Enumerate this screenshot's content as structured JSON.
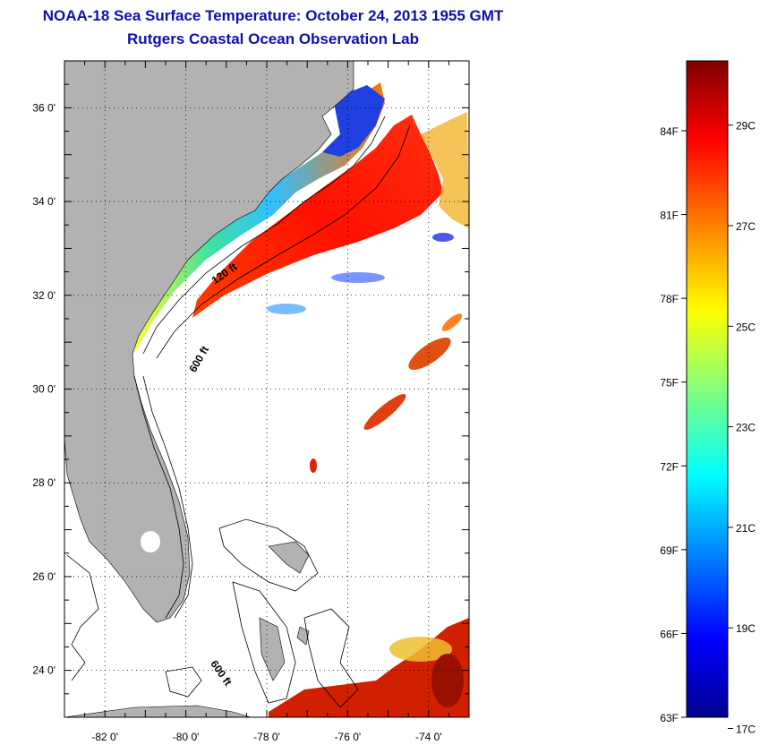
{
  "title": {
    "line1": "NOAA-18 Sea Surface Temperature:  October 24, 2013 1955 GMT",
    "line2": "Rutgers Coastal Ocean Observation Lab"
  },
  "map": {
    "lon_range": [
      -83,
      -73
    ],
    "lat_range": [
      23,
      37
    ],
    "lon_ticks": [
      {
        "value": -82,
        "label": "-82 0'"
      },
      {
        "value": -80,
        "label": "-80 0'"
      },
      {
        "value": -78,
        "label": "-78 0'"
      },
      {
        "value": -76,
        "label": "-76 0'"
      },
      {
        "value": -74,
        "label": "-74 0'"
      }
    ],
    "lat_ticks": [
      {
        "value": 36,
        "label": "36 0'"
      },
      {
        "value": 34,
        "label": "34 0'"
      },
      {
        "value": 32,
        "label": "32 0'"
      },
      {
        "value": 30,
        "label": "30 0'"
      },
      {
        "value": 28,
        "label": "28 0'"
      },
      {
        "value": 26,
        "label": "26 0'"
      },
      {
        "value": 24,
        "label": "24 0'"
      }
    ],
    "grid": true,
    "land_color": "#b2b2b2",
    "contour_labels": [
      {
        "text": "120 ft",
        "lon": -79.0,
        "lat": 32.4
      },
      {
        "text": "600 ft",
        "lon": -79.6,
        "lat": 30.6
      },
      {
        "text": "600 ft",
        "lon": -79.2,
        "lat": 23.9
      }
    ]
  },
  "colorbar": {
    "fahrenheit_ticks": [
      "63F",
      "66F",
      "69F",
      "72F",
      "75F",
      "78F",
      "81F",
      "84F"
    ],
    "celsius_ticks": [
      "17C",
      "19C",
      "21C",
      "23C",
      "25C",
      "27C",
      "29C"
    ],
    "f_values": [
      63,
      66,
      69,
      72,
      75,
      78,
      81,
      84
    ],
    "c_values": [
      17,
      19,
      21,
      23,
      25,
      27,
      29
    ],
    "f_range": [
      63,
      86.5
    ],
    "colors": [
      "#00008f",
      "#0000ff",
      "#00ffff",
      "#ffff00",
      "#ff7f00",
      "#ff0000",
      "#7f0000"
    ]
  }
}
